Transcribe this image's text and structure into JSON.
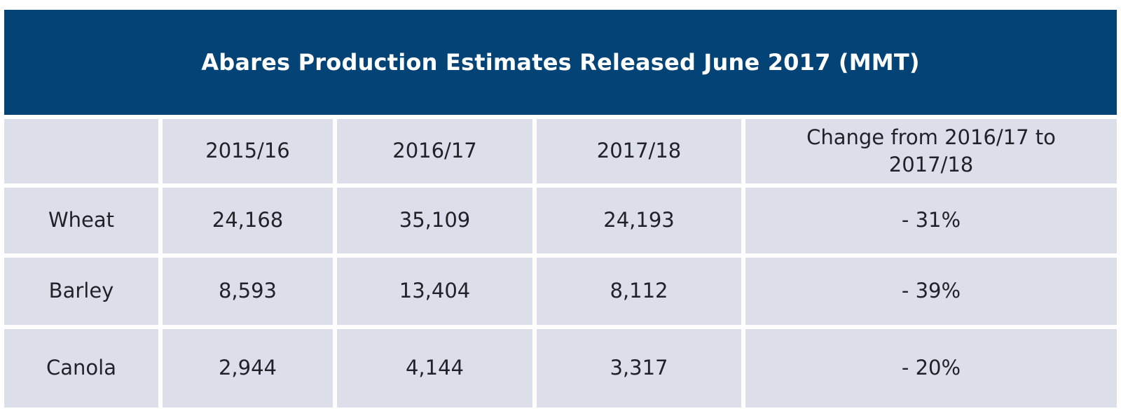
{
  "chart_data": {
    "type": "table",
    "title": "Abares Production Estimates Released June 2017 (MMT)",
    "columns": [
      "",
      "2015/16",
      "2016/17",
      "2017/18",
      "Change from 2016/17 to 2017/18"
    ],
    "rows": [
      {
        "label": "Wheat",
        "values": [
          "24,168",
          "35,109",
          "24,193",
          "- 31%"
        ]
      },
      {
        "label": "Barley",
        "values": [
          "8,593",
          "13,404",
          "8,112",
          "- 39%"
        ]
      },
      {
        "label": "Canola",
        "values": [
          "2,944",
          "4,144",
          "3,317",
          "- 20%"
        ]
      }
    ]
  },
  "colors": {
    "header_background": "#034376",
    "cell_background": "#dcdfea",
    "grid_lines": "#ffffff"
  }
}
